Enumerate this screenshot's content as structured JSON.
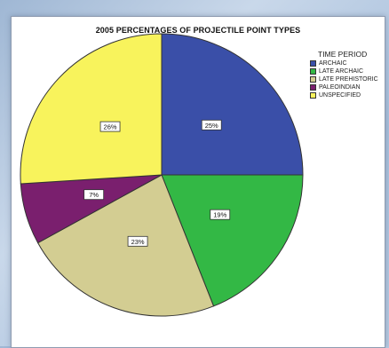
{
  "chart_data": {
    "type": "pie",
    "title": "2005 PERCENTAGES OF PROJECTILE POINT TYPES",
    "legend_title": "TIME PERIOD",
    "legend_position": "top-right",
    "slices": [
      {
        "label": "ARCHAIC",
        "value": 25,
        "display": "25%",
        "color": "#3a4fa8"
      },
      {
        "label": "LATE ARCHAIC",
        "value": 19,
        "display": "19%",
        "color": "#33b845"
      },
      {
        "label": "LATE PREHISTORIC",
        "value": 23,
        "display": "23%",
        "color": "#d3cd92"
      },
      {
        "label": "PALEOINDIAN",
        "value": 7,
        "display": "7%",
        "color": "#7a1f6e"
      },
      {
        "label": "UNSPECIFIED",
        "value": 26,
        "display": "26%",
        "color": "#f8f35c"
      }
    ]
  }
}
